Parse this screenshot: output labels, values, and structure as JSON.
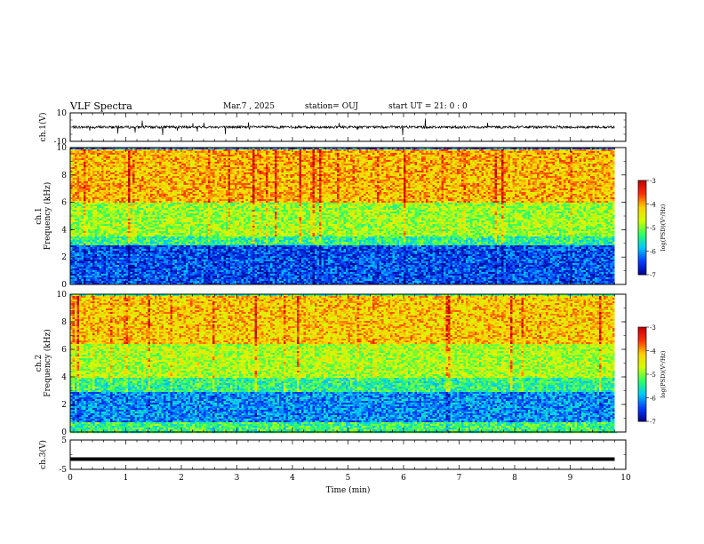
{
  "header": {
    "title": "VLF Spectra",
    "date": "Mar.7 , 2025",
    "station": "station= OUJ",
    "start": "start UT = 21: 0 : 0"
  },
  "chart_data": [
    {
      "panel": "ch1-waveform",
      "type": "line",
      "ylabel": "ch.1(V)",
      "ylim": [
        -10,
        10
      ],
      "yticks": [
        "10",
        "-10"
      ],
      "x_range_min": [
        0,
        9.8
      ],
      "baseline_v": 0,
      "typical_amplitude_v": 1.5,
      "spike_amplitude_v": 6
    },
    {
      "panel": "ch1-spectrogram",
      "type": "heatmap",
      "ylabel": "ch.1\nFrequency (kHz)",
      "ylim": [
        0,
        10
      ],
      "yticks": [
        "0",
        "2",
        "4",
        "6",
        "8",
        "10"
      ],
      "x_range_min": [
        0,
        9.8
      ],
      "bands": [
        {
          "from_khz": 0,
          "to_khz": 2.9,
          "log_psd": -6.4
        },
        {
          "from_khz": 2.9,
          "to_khz": 3.6,
          "log_psd": -5.4
        },
        {
          "from_khz": 3.6,
          "to_khz": 6.0,
          "log_psd": -4.9
        },
        {
          "from_khz": 6.0,
          "to_khz": 10,
          "log_psd": -4.1
        }
      ],
      "colorbar": {
        "min": -7,
        "max": -3,
        "ticks": [
          "-3",
          "-4",
          "-5",
          "-6",
          "-7"
        ],
        "label": "log(PSD)(V²/Hz)"
      }
    },
    {
      "panel": "ch2-spectrogram",
      "type": "heatmap",
      "ylabel": "ch.2\nFrequency (kHz)",
      "ylim": [
        0,
        10
      ],
      "yticks": [
        "0",
        "2",
        "4",
        "6",
        "8",
        "10"
      ],
      "x_range_min": [
        0,
        9.8
      ],
      "bands": [
        {
          "from_khz": 0,
          "to_khz": 0.8,
          "log_psd": -5.3
        },
        {
          "from_khz": 0.8,
          "to_khz": 3.0,
          "log_psd": -6.1
        },
        {
          "from_khz": 3.0,
          "to_khz": 4.0,
          "log_psd": -5.4
        },
        {
          "from_khz": 4.0,
          "to_khz": 6.5,
          "log_psd": -4.8
        },
        {
          "from_khz": 6.5,
          "to_khz": 10,
          "log_psd": -4.2
        }
      ],
      "colorbar": {
        "min": -7,
        "max": -3,
        "ticks": [
          "-3",
          "-4",
          "-5",
          "-6",
          "-7"
        ],
        "label": "log(PSD)(V²/Hz)"
      }
    },
    {
      "panel": "ch3-waveform",
      "type": "line",
      "ylabel": "ch.3(V)",
      "ylim": [
        -5,
        5
      ],
      "yticks": [
        "5",
        "-5"
      ],
      "x_range_min": [
        0,
        9.8
      ],
      "x": [
        0,
        9.8
      ],
      "y": [
        -1.5,
        -1.5
      ]
    }
  ],
  "x_axis": {
    "label": "Time (min)",
    "xlim": [
      0,
      10
    ],
    "ticks": [
      "0",
      "1",
      "2",
      "3",
      "4",
      "5",
      "6",
      "7",
      "8",
      "9",
      "10"
    ]
  },
  "colors": {
    "colormap": [
      "#000090",
      "#0040ff",
      "#00c8ff",
      "#30ff60",
      "#d0ff00",
      "#ffd000",
      "#ff3000",
      "#c00000"
    ],
    "trace": "#000000"
  }
}
